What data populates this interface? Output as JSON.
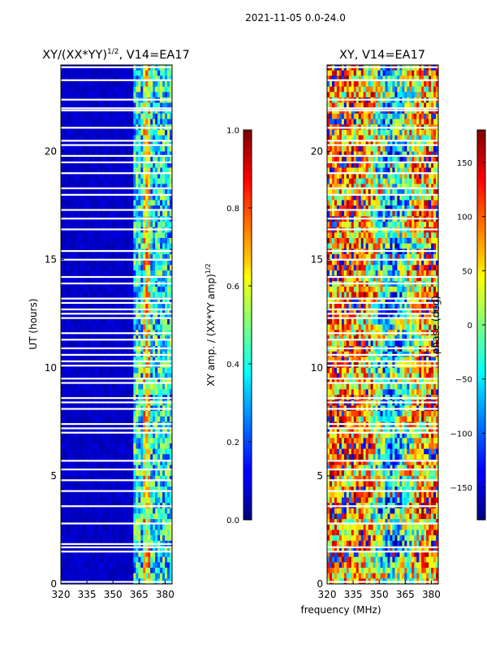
{
  "figure_title": "2021-11-05 0.0-24.0",
  "shared_xlabel": "frequency (MHz)",
  "chart_data": [
    {
      "type": "heatmap",
      "title_main": "XY/(XX*YY)",
      "title_sup": "1/2",
      "title_tail": ", V14=EA17",
      "ylabel": "UT (hours)",
      "x_ticks": [
        320,
        335,
        350,
        365,
        380
      ],
      "x_tick_labels": [
        "320",
        "335",
        "350",
        "365",
        "380"
      ],
      "xlim": [
        320,
        384
      ],
      "y_ticks": [
        0,
        5,
        10,
        15,
        20
      ],
      "y_tick_labels": [
        "0",
        "5",
        "10",
        "15",
        "20"
      ],
      "ylim": [
        0,
        24
      ],
      "colormap": "jet",
      "colorbar": {
        "label_main": "XY amp. / (XX*YY amp)",
        "label_sup": "1/2",
        "range": [
          0,
          1
        ],
        "ticks": [
          0,
          0.2,
          0.4,
          0.6,
          0.8,
          1.0
        ],
        "tick_labels": [
          "0.0",
          "0.2",
          "0.4",
          "0.6",
          "0.8",
          "1.0"
        ]
      },
      "flagged_hours": [
        0.1,
        1.5,
        1.7,
        1.85,
        2.8,
        3.6,
        4.3,
        4.8,
        5.3,
        5.7,
        7.0,
        7.2,
        7.4,
        8.1,
        8.4,
        8.6,
        9.3,
        9.5,
        10.1,
        10.3,
        10.6,
        10.9,
        11.3,
        11.6,
        12.3,
        12.5,
        12.7,
        13.0,
        13.2,
        13.9,
        14.2,
        15.0,
        15.4,
        16.4,
        16.9,
        17.3,
        18.0,
        18.3,
        19.0,
        19.5,
        19.8,
        20.3,
        20.5,
        21.1,
        21.9,
        22.0,
        22.4,
        23.3,
        23.9
      ]
    },
    {
      "type": "heatmap",
      "title_main": "XY, V14=EA17",
      "title_sup": "",
      "title_tail": "",
      "ylabel": "",
      "x_ticks": [
        320,
        335,
        350,
        365,
        380
      ],
      "x_tick_labels": [
        "320",
        "335",
        "350",
        "365",
        "380"
      ],
      "xlim": [
        320,
        384
      ],
      "y_ticks": [
        0,
        5,
        10,
        15,
        20
      ],
      "y_tick_labels": [
        "0",
        "5",
        "10",
        "15",
        "20"
      ],
      "ylim": [
        0,
        24
      ],
      "colormap": "jet",
      "colorbar": {
        "label_main": "phase (deg)",
        "label_sup": "",
        "range": [
          -180,
          180
        ],
        "ticks": [
          -150,
          -100,
          -50,
          0,
          50,
          100,
          150
        ],
        "tick_labels": [
          "−150",
          "−100",
          "−50",
          "0",
          "50",
          "100",
          "150"
        ]
      },
      "flagged_hours": [
        0.1,
        1.5,
        1.7,
        2.8,
        3.6,
        4.3,
        4.8,
        5.3,
        5.7,
        7.0,
        7.2,
        7.4,
        8.1,
        8.4,
        8.6,
        9.3,
        9.5,
        10.1,
        10.3,
        10.6,
        10.9,
        11.3,
        11.6,
        12.3,
        12.5,
        12.7,
        13.0,
        13.2,
        13.9,
        14.2,
        15.0,
        15.4,
        16.4,
        16.9,
        17.3,
        18.0,
        18.3,
        19.0,
        19.5,
        19.8,
        20.3,
        20.5,
        21.1,
        21.9,
        22.0,
        22.4,
        23.3,
        23.9
      ]
    }
  ]
}
